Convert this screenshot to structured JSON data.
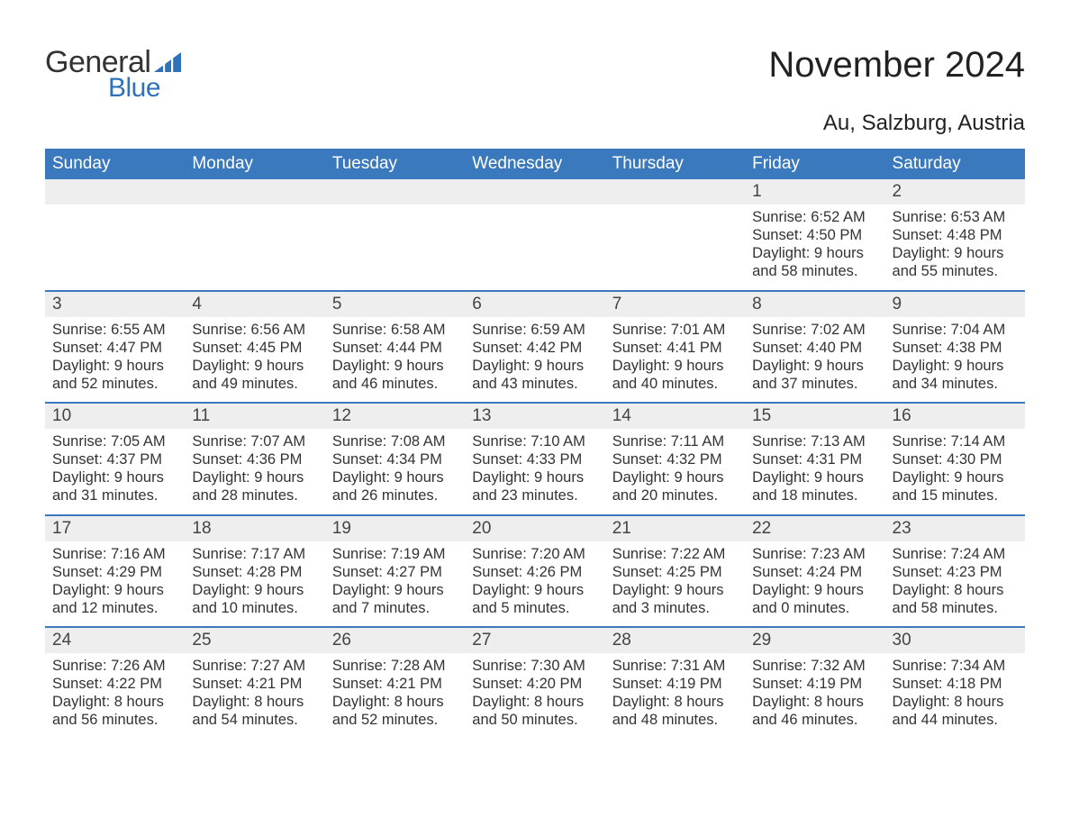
{
  "logo": {
    "general": "General",
    "blue": "Blue"
  },
  "title": "November 2024",
  "subtitle": "Au, Salzburg, Austria",
  "colors": {
    "header_bg": "#3a79bd",
    "header_text": "#ffffff",
    "daynum_bg": "#eeeeee",
    "daynum_text": "#444444",
    "body_text": "#333333",
    "rule": "#3a79bd",
    "logo_blue": "#2f72b8",
    "page_bg": "#ffffff"
  },
  "weekdays": [
    "Sunday",
    "Monday",
    "Tuesday",
    "Wednesday",
    "Thursday",
    "Friday",
    "Saturday"
  ],
  "weeks": [
    [
      null,
      null,
      null,
      null,
      null,
      {
        "n": "1",
        "sunrise": "Sunrise: 6:52 AM",
        "sunset": "Sunset: 4:50 PM",
        "day1": "Daylight: 9 hours",
        "day2": "and 58 minutes."
      },
      {
        "n": "2",
        "sunrise": "Sunrise: 6:53 AM",
        "sunset": "Sunset: 4:48 PM",
        "day1": "Daylight: 9 hours",
        "day2": "and 55 minutes."
      }
    ],
    [
      {
        "n": "3",
        "sunrise": "Sunrise: 6:55 AM",
        "sunset": "Sunset: 4:47 PM",
        "day1": "Daylight: 9 hours",
        "day2": "and 52 minutes."
      },
      {
        "n": "4",
        "sunrise": "Sunrise: 6:56 AM",
        "sunset": "Sunset: 4:45 PM",
        "day1": "Daylight: 9 hours",
        "day2": "and 49 minutes."
      },
      {
        "n": "5",
        "sunrise": "Sunrise: 6:58 AM",
        "sunset": "Sunset: 4:44 PM",
        "day1": "Daylight: 9 hours",
        "day2": "and 46 minutes."
      },
      {
        "n": "6",
        "sunrise": "Sunrise: 6:59 AM",
        "sunset": "Sunset: 4:42 PM",
        "day1": "Daylight: 9 hours",
        "day2": "and 43 minutes."
      },
      {
        "n": "7",
        "sunrise": "Sunrise: 7:01 AM",
        "sunset": "Sunset: 4:41 PM",
        "day1": "Daylight: 9 hours",
        "day2": "and 40 minutes."
      },
      {
        "n": "8",
        "sunrise": "Sunrise: 7:02 AM",
        "sunset": "Sunset: 4:40 PM",
        "day1": "Daylight: 9 hours",
        "day2": "and 37 minutes."
      },
      {
        "n": "9",
        "sunrise": "Sunrise: 7:04 AM",
        "sunset": "Sunset: 4:38 PM",
        "day1": "Daylight: 9 hours",
        "day2": "and 34 minutes."
      }
    ],
    [
      {
        "n": "10",
        "sunrise": "Sunrise: 7:05 AM",
        "sunset": "Sunset: 4:37 PM",
        "day1": "Daylight: 9 hours",
        "day2": "and 31 minutes."
      },
      {
        "n": "11",
        "sunrise": "Sunrise: 7:07 AM",
        "sunset": "Sunset: 4:36 PM",
        "day1": "Daylight: 9 hours",
        "day2": "and 28 minutes."
      },
      {
        "n": "12",
        "sunrise": "Sunrise: 7:08 AM",
        "sunset": "Sunset: 4:34 PM",
        "day1": "Daylight: 9 hours",
        "day2": "and 26 minutes."
      },
      {
        "n": "13",
        "sunrise": "Sunrise: 7:10 AM",
        "sunset": "Sunset: 4:33 PM",
        "day1": "Daylight: 9 hours",
        "day2": "and 23 minutes."
      },
      {
        "n": "14",
        "sunrise": "Sunrise: 7:11 AM",
        "sunset": "Sunset: 4:32 PM",
        "day1": "Daylight: 9 hours",
        "day2": "and 20 minutes."
      },
      {
        "n": "15",
        "sunrise": "Sunrise: 7:13 AM",
        "sunset": "Sunset: 4:31 PM",
        "day1": "Daylight: 9 hours",
        "day2": "and 18 minutes."
      },
      {
        "n": "16",
        "sunrise": "Sunrise: 7:14 AM",
        "sunset": "Sunset: 4:30 PM",
        "day1": "Daylight: 9 hours",
        "day2": "and 15 minutes."
      }
    ],
    [
      {
        "n": "17",
        "sunrise": "Sunrise: 7:16 AM",
        "sunset": "Sunset: 4:29 PM",
        "day1": "Daylight: 9 hours",
        "day2": "and 12 minutes."
      },
      {
        "n": "18",
        "sunrise": "Sunrise: 7:17 AM",
        "sunset": "Sunset: 4:28 PM",
        "day1": "Daylight: 9 hours",
        "day2": "and 10 minutes."
      },
      {
        "n": "19",
        "sunrise": "Sunrise: 7:19 AM",
        "sunset": "Sunset: 4:27 PM",
        "day1": "Daylight: 9 hours",
        "day2": "and 7 minutes."
      },
      {
        "n": "20",
        "sunrise": "Sunrise: 7:20 AM",
        "sunset": "Sunset: 4:26 PM",
        "day1": "Daylight: 9 hours",
        "day2": "and 5 minutes."
      },
      {
        "n": "21",
        "sunrise": "Sunrise: 7:22 AM",
        "sunset": "Sunset: 4:25 PM",
        "day1": "Daylight: 9 hours",
        "day2": "and 3 minutes."
      },
      {
        "n": "22",
        "sunrise": "Sunrise: 7:23 AM",
        "sunset": "Sunset: 4:24 PM",
        "day1": "Daylight: 9 hours",
        "day2": "and 0 minutes."
      },
      {
        "n": "23",
        "sunrise": "Sunrise: 7:24 AM",
        "sunset": "Sunset: 4:23 PM",
        "day1": "Daylight: 8 hours",
        "day2": "and 58 minutes."
      }
    ],
    [
      {
        "n": "24",
        "sunrise": "Sunrise: 7:26 AM",
        "sunset": "Sunset: 4:22 PM",
        "day1": "Daylight: 8 hours",
        "day2": "and 56 minutes."
      },
      {
        "n": "25",
        "sunrise": "Sunrise: 7:27 AM",
        "sunset": "Sunset: 4:21 PM",
        "day1": "Daylight: 8 hours",
        "day2": "and 54 minutes."
      },
      {
        "n": "26",
        "sunrise": "Sunrise: 7:28 AM",
        "sunset": "Sunset: 4:21 PM",
        "day1": "Daylight: 8 hours",
        "day2": "and 52 minutes."
      },
      {
        "n": "27",
        "sunrise": "Sunrise: 7:30 AM",
        "sunset": "Sunset: 4:20 PM",
        "day1": "Daylight: 8 hours",
        "day2": "and 50 minutes."
      },
      {
        "n": "28",
        "sunrise": "Sunrise: 7:31 AM",
        "sunset": "Sunset: 4:19 PM",
        "day1": "Daylight: 8 hours",
        "day2": "and 48 minutes."
      },
      {
        "n": "29",
        "sunrise": "Sunrise: 7:32 AM",
        "sunset": "Sunset: 4:19 PM",
        "day1": "Daylight: 8 hours",
        "day2": "and 46 minutes."
      },
      {
        "n": "30",
        "sunrise": "Sunrise: 7:34 AM",
        "sunset": "Sunset: 4:18 PM",
        "day1": "Daylight: 8 hours",
        "day2": "and 44 minutes."
      }
    ]
  ]
}
